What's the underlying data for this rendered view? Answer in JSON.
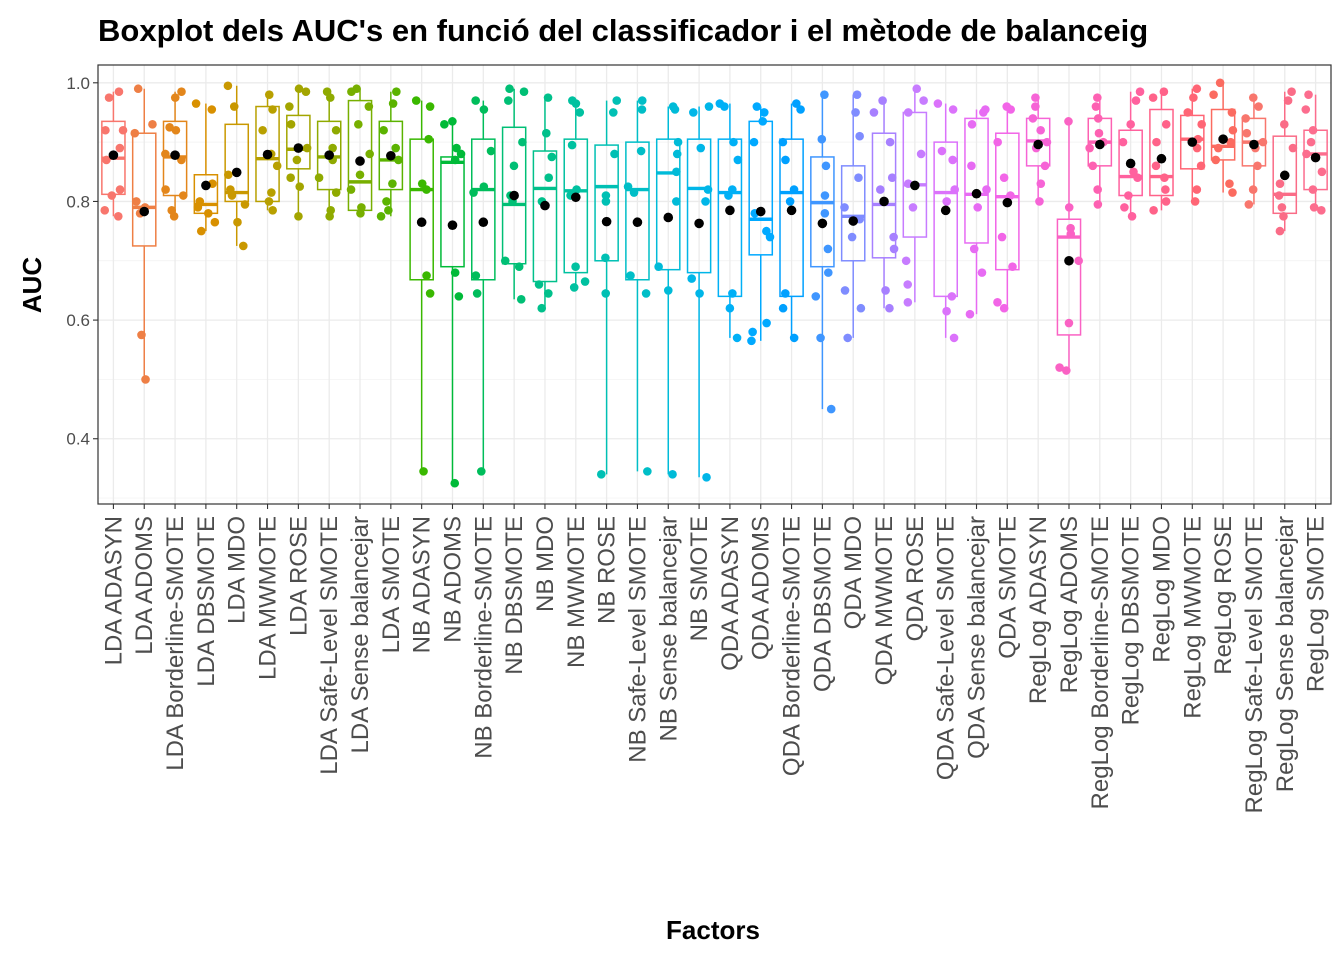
{
  "chart_data": {
    "type": "boxplot",
    "title": "Boxplot dels AUC's en funció del classificador i el mètode de balanceig",
    "xlabel": "Factors",
    "ylabel": "AUC",
    "ylim": [
      0.29,
      1.03
    ],
    "yticks": [
      0.4,
      0.6,
      0.8,
      1.0
    ],
    "ytick_labels": [
      "0.4",
      "0.6",
      "0.8",
      "1.0"
    ],
    "grid": true,
    "legend": "none",
    "mean_marker_color": "#000000",
    "categories": [
      {
        "name": "LDA ADASYN",
        "color": "#F8766D",
        "q1": 0.812,
        "median": 0.873,
        "q3": 0.935,
        "wlow": 0.775,
        "whigh": 0.985,
        "mean": 0.878,
        "points": [
          0.775,
          0.785,
          0.81,
          0.82,
          0.87,
          0.89,
          0.92,
          0.92,
          0.975,
          0.985
        ]
      },
      {
        "name": "LDA ADOMS",
        "color": "#EE7F45",
        "q1": 0.725,
        "median": 0.79,
        "q3": 0.915,
        "wlow": 0.5,
        "whigh": 0.99,
        "mean": 0.783,
        "points": [
          0.5,
          0.575,
          0.78,
          0.79,
          0.8,
          0.915,
          0.93,
          0.99
        ]
      },
      {
        "name": "LDA Borderline-SMOTE",
        "color": "#E3861B",
        "q1": 0.81,
        "median": 0.875,
        "q3": 0.935,
        "wlow": 0.775,
        "whigh": 0.985,
        "mean": 0.878,
        "points": [
          0.775,
          0.785,
          0.81,
          0.82,
          0.87,
          0.88,
          0.92,
          0.925,
          0.975,
          0.985
        ]
      },
      {
        "name": "LDA DBSMOTE",
        "color": "#D89000",
        "q1": 0.78,
        "median": 0.795,
        "q3": 0.845,
        "wlow": 0.75,
        "whigh": 0.965,
        "mean": 0.827,
        "points": [
          0.75,
          0.765,
          0.78,
          0.79,
          0.8,
          0.83,
          0.955,
          0.965
        ]
      },
      {
        "name": "LDA MDO",
        "color": "#C99800",
        "q1": 0.8,
        "median": 0.815,
        "q3": 0.93,
        "wlow": 0.725,
        "whigh": 0.995,
        "mean": 0.849,
        "points": [
          0.725,
          0.765,
          0.795,
          0.81,
          0.82,
          0.845,
          0.96,
          0.995
        ]
      },
      {
        "name": "LDA MWMOTE",
        "color": "#B8A000",
        "q1": 0.8,
        "median": 0.872,
        "q3": 0.96,
        "wlow": 0.785,
        "whigh": 0.98,
        "mean": 0.879,
        "points": [
          0.785,
          0.8,
          0.815,
          0.86,
          0.88,
          0.92,
          0.955,
          0.98
        ]
      },
      {
        "name": "LDA ROSE",
        "color": "#A3A500",
        "q1": 0.855,
        "median": 0.888,
        "q3": 0.945,
        "wlow": 0.775,
        "whigh": 0.99,
        "mean": 0.89,
        "points": [
          0.775,
          0.825,
          0.84,
          0.87,
          0.89,
          0.93,
          0.96,
          0.985,
          0.99
        ]
      },
      {
        "name": "LDA Safe-Level SMOTE",
        "color": "#8FAA00",
        "q1": 0.82,
        "median": 0.875,
        "q3": 0.935,
        "wlow": 0.775,
        "whigh": 0.985,
        "mean": 0.878,
        "points": [
          0.775,
          0.785,
          0.815,
          0.84,
          0.87,
          0.89,
          0.92,
          0.975,
          0.985
        ]
      },
      {
        "name": "LDA Sense balancejar",
        "color": "#77AF00",
        "q1": 0.785,
        "median": 0.833,
        "q3": 0.97,
        "wlow": 0.78,
        "whigh": 0.99,
        "mean": 0.868,
        "points": [
          0.78,
          0.79,
          0.82,
          0.845,
          0.88,
          0.93,
          0.96,
          0.985,
          0.99
        ]
      },
      {
        "name": "LDA SMOTE",
        "color": "#5BB300",
        "q1": 0.82,
        "median": 0.87,
        "q3": 0.935,
        "wlow": 0.775,
        "whigh": 0.985,
        "mean": 0.877,
        "points": [
          0.775,
          0.785,
          0.8,
          0.83,
          0.87,
          0.89,
          0.92,
          0.965,
          0.985
        ]
      },
      {
        "name": "NB ADASYN",
        "color": "#3AB800",
        "q1": 0.668,
        "median": 0.82,
        "q3": 0.905,
        "wlow": 0.345,
        "whigh": 0.97,
        "mean": 0.765,
        "points": [
          0.345,
          0.645,
          0.675,
          0.82,
          0.83,
          0.905,
          0.96,
          0.97
        ]
      },
      {
        "name": "NB ADOMS",
        "color": "#00BA38",
        "q1": 0.69,
        "median": 0.866,
        "q3": 0.875,
        "wlow": 0.325,
        "whigh": 0.935,
        "mean": 0.76,
        "points": [
          0.325,
          0.64,
          0.68,
          0.87,
          0.88,
          0.89,
          0.93,
          0.935
        ]
      },
      {
        "name": "NB Borderline-SMOTE",
        "color": "#00BD5B",
        "q1": 0.668,
        "median": 0.82,
        "q3": 0.905,
        "wlow": 0.345,
        "whigh": 0.97,
        "mean": 0.765,
        "points": [
          0.345,
          0.645,
          0.675,
          0.815,
          0.825,
          0.885,
          0.955,
          0.97
        ]
      },
      {
        "name": "NB DBSMOTE",
        "color": "#00BF75",
        "q1": 0.695,
        "median": 0.795,
        "q3": 0.925,
        "wlow": 0.635,
        "whigh": 0.99,
        "mean": 0.81,
        "points": [
          0.635,
          0.69,
          0.7,
          0.8,
          0.81,
          0.86,
          0.9,
          0.97,
          0.985,
          0.99
        ]
      },
      {
        "name": "NB MDO",
        "color": "#00C08B",
        "q1": 0.665,
        "median": 0.822,
        "q3": 0.885,
        "wlow": 0.62,
        "whigh": 0.975,
        "mean": 0.793,
        "points": [
          0.62,
          0.645,
          0.66,
          0.8,
          0.84,
          0.875,
          0.915,
          0.975
        ]
      },
      {
        "name": "NB MWMOTE",
        "color": "#00C1A0",
        "q1": 0.68,
        "median": 0.818,
        "q3": 0.905,
        "wlow": 0.655,
        "whigh": 0.97,
        "mean": 0.807,
        "points": [
          0.655,
          0.665,
          0.69,
          0.81,
          0.82,
          0.895,
          0.95,
          0.965,
          0.97
        ]
      },
      {
        "name": "NB ROSE",
        "color": "#00C0B4",
        "q1": 0.7,
        "median": 0.825,
        "q3": 0.895,
        "wlow": 0.34,
        "whigh": 0.97,
        "mean": 0.766,
        "points": [
          0.34,
          0.645,
          0.705,
          0.8,
          0.81,
          0.88,
          0.95,
          0.97
        ]
      },
      {
        "name": "NB Safe-Level SMOTE",
        "color": "#00BEC7",
        "q1": 0.668,
        "median": 0.82,
        "q3": 0.9,
        "wlow": 0.345,
        "whigh": 0.97,
        "mean": 0.765,
        "points": [
          0.345,
          0.645,
          0.675,
          0.815,
          0.825,
          0.885,
          0.955,
          0.97
        ]
      },
      {
        "name": "NB Sense balancejar",
        "color": "#00BBD8",
        "q1": 0.685,
        "median": 0.848,
        "q3": 0.905,
        "wlow": 0.34,
        "whigh": 0.96,
        "mean": 0.773,
        "points": [
          0.34,
          0.65,
          0.69,
          0.8,
          0.85,
          0.88,
          0.9,
          0.955,
          0.96
        ]
      },
      {
        "name": "NB SMOTE",
        "color": "#00B6E8",
        "q1": 0.68,
        "median": 0.822,
        "q3": 0.905,
        "wlow": 0.335,
        "whigh": 0.96,
        "mean": 0.763,
        "points": [
          0.335,
          0.645,
          0.67,
          0.8,
          0.82,
          0.89,
          0.95,
          0.96
        ]
      },
      {
        "name": "QDA ADASYN",
        "color": "#00B0F6",
        "q1": 0.64,
        "median": 0.815,
        "q3": 0.905,
        "wlow": 0.57,
        "whigh": 0.965,
        "mean": 0.785,
        "points": [
          0.57,
          0.62,
          0.645,
          0.81,
          0.82,
          0.87,
          0.9,
          0.96,
          0.965
        ]
      },
      {
        "name": "QDA ADOMS",
        "color": "#00A9FF",
        "q1": 0.71,
        "median": 0.77,
        "q3": 0.935,
        "wlow": 0.565,
        "whigh": 0.96,
        "mean": 0.783,
        "points": [
          0.565,
          0.58,
          0.595,
          0.74,
          0.75,
          0.78,
          0.9,
          0.935,
          0.95,
          0.96
        ]
      },
      {
        "name": "QDA Borderline-SMOTE",
        "color": "#00A0FF",
        "q1": 0.64,
        "median": 0.815,
        "q3": 0.905,
        "wlow": 0.57,
        "whigh": 0.965,
        "mean": 0.785,
        "points": [
          0.57,
          0.62,
          0.645,
          0.8,
          0.82,
          0.87,
          0.9,
          0.955,
          0.965
        ]
      },
      {
        "name": "QDA DBSMOTE",
        "color": "#3F96FF",
        "q1": 0.69,
        "median": 0.798,
        "q3": 0.875,
        "wlow": 0.45,
        "whigh": 0.98,
        "mean": 0.763,
        "points": [
          0.45,
          0.57,
          0.64,
          0.68,
          0.72,
          0.78,
          0.81,
          0.86,
          0.905,
          0.98
        ]
      },
      {
        "name": "QDA MDO",
        "color": "#7F8CFF",
        "q1": 0.7,
        "median": 0.775,
        "q3": 0.86,
        "wlow": 0.57,
        "whigh": 0.98,
        "mean": 0.767,
        "points": [
          0.57,
          0.62,
          0.65,
          0.74,
          0.77,
          0.79,
          0.84,
          0.91,
          0.95,
          0.98
        ]
      },
      {
        "name": "QDA MWMOTE",
        "color": "#A780FF",
        "q1": 0.705,
        "median": 0.795,
        "q3": 0.915,
        "wlow": 0.62,
        "whigh": 0.97,
        "mean": 0.8,
        "points": [
          0.62,
          0.65,
          0.72,
          0.74,
          0.82,
          0.84,
          0.9,
          0.95,
          0.97
        ]
      },
      {
        "name": "QDA ROSE",
        "color": "#C77CFF",
        "q1": 0.74,
        "median": 0.828,
        "q3": 0.95,
        "wlow": 0.63,
        "whigh": 0.99,
        "mean": 0.827,
        "points": [
          0.63,
          0.66,
          0.7,
          0.79,
          0.83,
          0.88,
          0.95,
          0.97,
          0.99
        ]
      },
      {
        "name": "QDA Safe-Level SMOTE",
        "color": "#DB72FB",
        "q1": 0.64,
        "median": 0.815,
        "q3": 0.9,
        "wlow": 0.57,
        "whigh": 0.965,
        "mean": 0.785,
        "points": [
          0.57,
          0.615,
          0.64,
          0.8,
          0.82,
          0.87,
          0.885,
          0.955,
          0.965
        ]
      },
      {
        "name": "QDA Sense balancejar",
        "color": "#E76BF3",
        "q1": 0.73,
        "median": 0.812,
        "q3": 0.94,
        "wlow": 0.61,
        "whigh": 0.955,
        "mean": 0.813,
        "points": [
          0.61,
          0.68,
          0.72,
          0.79,
          0.82,
          0.86,
          0.93,
          0.95,
          0.955
        ]
      },
      {
        "name": "QDA SMOTE",
        "color": "#F265E7",
        "q1": 0.685,
        "median": 0.808,
        "q3": 0.915,
        "wlow": 0.62,
        "whigh": 0.96,
        "mean": 0.798,
        "points": [
          0.62,
          0.63,
          0.69,
          0.74,
          0.81,
          0.84,
          0.9,
          0.955,
          0.96
        ]
      },
      {
        "name": "RegLog ADASYN",
        "color": "#F664D6",
        "q1": 0.86,
        "median": 0.902,
        "q3": 0.94,
        "wlow": 0.8,
        "whigh": 0.975,
        "mean": 0.896,
        "points": [
          0.8,
          0.83,
          0.86,
          0.89,
          0.9,
          0.92,
          0.94,
          0.96,
          0.975
        ]
      },
      {
        "name": "RegLog ADOMS",
        "color": "#FA62C4",
        "q1": 0.575,
        "median": 0.74,
        "q3": 0.77,
        "wlow": 0.515,
        "whigh": 0.935,
        "mean": 0.7,
        "points": [
          0.515,
          0.52,
          0.595,
          0.7,
          0.745,
          0.755,
          0.79,
          0.935
        ]
      },
      {
        "name": "RegLog Borderline-SMOTE",
        "color": "#FD61B2",
        "q1": 0.86,
        "median": 0.9,
        "q3": 0.94,
        "wlow": 0.795,
        "whigh": 0.975,
        "mean": 0.896,
        "points": [
          0.795,
          0.82,
          0.86,
          0.89,
          0.9,
          0.915,
          0.94,
          0.96,
          0.975
        ]
      },
      {
        "name": "RegLog DBSMOTE",
        "color": "#FF619E",
        "q1": 0.81,
        "median": 0.842,
        "q3": 0.92,
        "wlow": 0.775,
        "whigh": 0.985,
        "mean": 0.864,
        "points": [
          0.775,
          0.79,
          0.81,
          0.84,
          0.85,
          0.9,
          0.93,
          0.97,
          0.985
        ]
      },
      {
        "name": "RegLog MDO",
        "color": "#FF6289",
        "q1": 0.81,
        "median": 0.842,
        "q3": 0.955,
        "wlow": 0.785,
        "whigh": 0.985,
        "mean": 0.872,
        "points": [
          0.785,
          0.8,
          0.82,
          0.84,
          0.86,
          0.9,
          0.93,
          0.975,
          0.985
        ]
      },
      {
        "name": "RegLog MWMOTE",
        "color": "#FF6575",
        "q1": 0.855,
        "median": 0.905,
        "q3": 0.945,
        "wlow": 0.8,
        "whigh": 0.99,
        "mean": 0.9,
        "points": [
          0.8,
          0.82,
          0.86,
          0.89,
          0.905,
          0.93,
          0.95,
          0.975,
          0.99
        ]
      },
      {
        "name": "RegLog ROSE",
        "color": "#FB6B60",
        "q1": 0.87,
        "median": 0.893,
        "q3": 0.955,
        "wlow": 0.815,
        "whigh": 1.0,
        "mean": 0.905,
        "points": [
          0.815,
          0.83,
          0.87,
          0.89,
          0.9,
          0.92,
          0.95,
          0.98,
          1.0
        ]
      },
      {
        "name": "RegLog Safe-Level SMOTE",
        "color": "#F8766D",
        "q1": 0.86,
        "median": 0.9,
        "q3": 0.94,
        "wlow": 0.795,
        "whigh": 0.975,
        "mean": 0.896,
        "points": [
          0.795,
          0.82,
          0.86,
          0.89,
          0.9,
          0.915,
          0.94,
          0.96,
          0.975
        ]
      },
      {
        "name": "RegLog Sense balancejar",
        "color": "#FA6C87",
        "q1": 0.78,
        "median": 0.812,
        "q3": 0.91,
        "wlow": 0.75,
        "whigh": 0.985,
        "mean": 0.844,
        "points": [
          0.75,
          0.775,
          0.79,
          0.81,
          0.83,
          0.89,
          0.93,
          0.97,
          0.985
        ]
      },
      {
        "name": "RegLog SMOTE",
        "color": "#FC6D8E",
        "q1": 0.82,
        "median": 0.88,
        "q3": 0.92,
        "wlow": 0.785,
        "whigh": 0.98,
        "mean": 0.874,
        "points": [
          0.785,
          0.79,
          0.82,
          0.85,
          0.88,
          0.9,
          0.92,
          0.955,
          0.98
        ]
      }
    ]
  }
}
